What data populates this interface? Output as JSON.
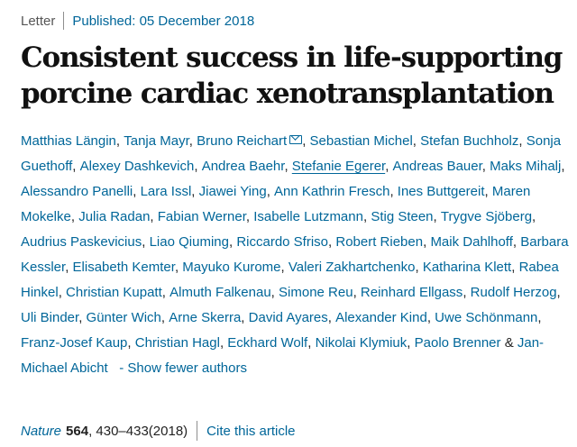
{
  "header": {
    "article_type": "Letter",
    "published": "Published: 05 December 2018"
  },
  "title": {
    "line1": "Consistent success in life-supporting",
    "line2": "porcine cardiac xenotransplantation"
  },
  "authors": [
    {
      "name": "Matthias Längin",
      "sep": ", "
    },
    {
      "name": "Tanja Mayr",
      "sep": ", "
    },
    {
      "name": "Bruno Reichart",
      "sep": ", ",
      "icon": "mail-icon"
    },
    {
      "name": "Sebastian Michel",
      "sep": ", "
    },
    {
      "name": "Stefan Buchholz",
      "sep": ", "
    },
    {
      "name": "Sonja Guethoff",
      "sep": ", "
    },
    {
      "name": "Alexey Dashkevich",
      "sep": ", "
    },
    {
      "name": "Andrea Baehr",
      "sep": ", "
    },
    {
      "name": "Stefanie Egerer",
      "sep": ", ",
      "underlined": true
    },
    {
      "name": "Andreas Bauer",
      "sep": ", "
    },
    {
      "name": "Maks Mihalj",
      "sep": ", "
    },
    {
      "name": "Alessandro Panelli",
      "sep": ", "
    },
    {
      "name": "Lara Issl",
      "sep": ", "
    },
    {
      "name": "Jiawei Ying",
      "sep": ", "
    },
    {
      "name": "Ann Kathrin Fresch",
      "sep": ", "
    },
    {
      "name": "Ines Buttgereit",
      "sep": ", "
    },
    {
      "name": "Maren Mokelke",
      "sep": ", "
    },
    {
      "name": "Julia Radan",
      "sep": ", "
    },
    {
      "name": "Fabian Werner",
      "sep": ", "
    },
    {
      "name": "Isabelle Lutzmann",
      "sep": ", "
    },
    {
      "name": "Stig Steen",
      "sep": ", "
    },
    {
      "name": "Trygve Sjöberg",
      "sep": ", "
    },
    {
      "name": "Audrius Paskevicius",
      "sep": ", "
    },
    {
      "name": "Liao Qiuming",
      "sep": ", "
    },
    {
      "name": "Riccardo Sfriso",
      "sep": ", "
    },
    {
      "name": "Robert Rieben",
      "sep": ", "
    },
    {
      "name": "Maik Dahlhoff",
      "sep": ", "
    },
    {
      "name": "Barbara Kessler",
      "sep": ", "
    },
    {
      "name": "Elisabeth Kemter",
      "sep": ", "
    },
    {
      "name": "Mayuko Kurome",
      "sep": ", "
    },
    {
      "name": "Valeri Zakhartchenko",
      "sep": ", "
    },
    {
      "name": "Katharina Klett",
      "sep": ", "
    },
    {
      "name": "Rabea Hinkel",
      "sep": ", "
    },
    {
      "name": "Christian Kupatt",
      "sep": ", "
    },
    {
      "name": "Almuth Falkenau",
      "sep": ", "
    },
    {
      "name": "Simone Reu",
      "sep": ", "
    },
    {
      "name": "Reinhard Ellgass",
      "sep": ", "
    },
    {
      "name": "Rudolf Herzog",
      "sep": ", "
    },
    {
      "name": "Uli Binder",
      "sep": ", "
    },
    {
      "name": "Günter Wich",
      "sep": ", "
    },
    {
      "name": "Arne Skerra",
      "sep": ", "
    },
    {
      "name": "David Ayares",
      "sep": ", "
    },
    {
      "name": "Alexander Kind",
      "sep": ", "
    },
    {
      "name": "Uwe Schönmann",
      "sep": ", "
    },
    {
      "name": "Franz-Josef Kaup",
      "sep": ", "
    },
    {
      "name": "Christian Hagl",
      "sep": ", "
    },
    {
      "name": "Eckhard Wolf",
      "sep": ", "
    },
    {
      "name": "Nikolai Klymiuk",
      "sep": ", "
    },
    {
      "name": "Paolo Brenner",
      "sep": " & "
    },
    {
      "name": "Jan-Michael Abicht",
      "sep": ""
    }
  ],
  "show_fewer": "- Show fewer authors",
  "citation": {
    "journal": "Nature",
    "volume": "564",
    "pages": ", 430–433",
    "year": "(2018)",
    "cite_link": "Cite this article"
  },
  "colors": {
    "link": "#006699",
    "text": "#222222",
    "title": "#111111",
    "divider": "#8f8f8f"
  }
}
